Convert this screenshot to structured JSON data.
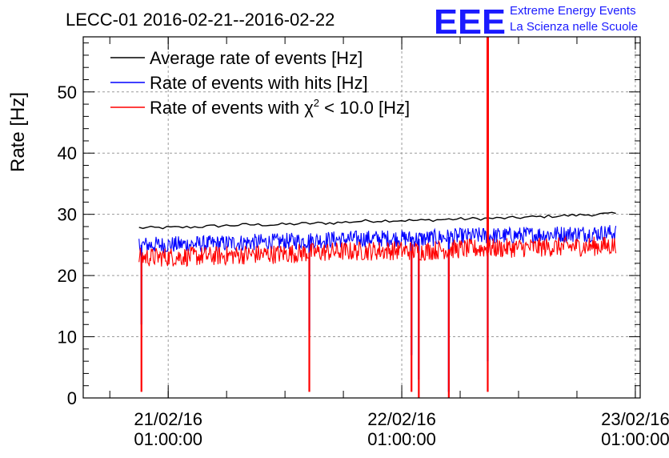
{
  "chart_data": {
    "type": "line",
    "title": "LECC-01 2016-02-21--2016-02-22",
    "ylabel": "Rate [Hz]",
    "xlabel": "",
    "xlim": [
      "2016-02-20T16:16:00",
      "2016-02-23T01:30:00"
    ],
    "ylim": [
      0,
      59
    ],
    "yticks": [
      0,
      10,
      20,
      30,
      40,
      50
    ],
    "xticks": [
      {
        "t": "2016-02-21T01:00:00",
        "label1": "21/02/16",
        "label2": "01:00:00"
      },
      {
        "t": "2016-02-22T01:00:00",
        "label1": "22/02/16",
        "label2": "01:00:00"
      },
      {
        "t": "2016-02-23T01:00:00",
        "label1": "23/02/16",
        "label2": "01:00:00"
      }
    ],
    "grid": true,
    "legend_position": "top-left",
    "legend": [
      {
        "label": "Average rate of events [Hz]",
        "color": "#000000"
      },
      {
        "label": "Rate of events with hits [Hz]",
        "color": "#0000ff"
      },
      {
        "label_pre": "Rate of events with ",
        "label_chi": "χ",
        "label_sup": "2",
        "label_post": " < 10.0 [Hz]",
        "color": "#ff0000"
      }
    ],
    "series": [
      {
        "color": "#000000",
        "x": [
          "2016-02-20T22:00:00",
          "2016-02-21T00:00:00",
          "2016-02-21T03:00:00",
          "2016-02-21T06:00:00",
          "2016-02-21T09:00:00",
          "2016-02-21T12:00:00",
          "2016-02-21T15:00:00",
          "2016-02-21T18:00:00",
          "2016-02-21T21:00:00",
          "2016-02-22T00:00:00",
          "2016-02-22T03:00:00",
          "2016-02-22T06:00:00",
          "2016-02-22T09:00:00",
          "2016-02-22T12:00:00",
          "2016-02-22T15:00:00",
          "2016-02-22T18:00:00",
          "2016-02-22T21:00:00",
          "2016-02-22T23:00:00"
        ],
        "values": [
          27.8,
          27.8,
          27.9,
          28.1,
          28.3,
          28.3,
          28.5,
          28.6,
          28.9,
          29.0,
          29.0,
          29.2,
          29.3,
          29.4,
          29.6,
          29.8,
          30.0,
          30.1
        ]
      },
      {
        "color": "#0000ff",
        "x": [
          "2016-02-20T22:00:00",
          "2016-02-21T00:00:00",
          "2016-02-21T03:00:00",
          "2016-02-21T06:00:00",
          "2016-02-21T09:00:00",
          "2016-02-21T12:00:00",
          "2016-02-21T15:00:00",
          "2016-02-21T18:00:00",
          "2016-02-21T21:00:00",
          "2016-02-22T00:00:00",
          "2016-02-22T03:00:00",
          "2016-02-22T06:00:00",
          "2016-02-22T09:00:00",
          "2016-02-22T12:00:00",
          "2016-02-22T15:00:00",
          "2016-02-22T18:00:00",
          "2016-02-22T21:00:00",
          "2016-02-22T23:00:00"
        ],
        "values": [
          25.0,
          25.0,
          25.1,
          25.2,
          25.4,
          25.5,
          25.7,
          25.9,
          26.0,
          26.1,
          26.0,
          26.3,
          26.5,
          26.5,
          26.7,
          26.8,
          26.9,
          27.0
        ],
        "dips": [
          {
            "t": "2016-02-20T22:15:00",
            "v": 12
          },
          {
            "t": "2016-02-21T15:30:00",
            "v": 11
          },
          {
            "t": "2016-02-22T02:00:00",
            "v": 7
          },
          {
            "t": "2016-02-22T02:45:00",
            "v": 3
          },
          {
            "t": "2016-02-22T05:50:00",
            "v": 1
          },
          {
            "t": "2016-02-22T09:50:00",
            "v": 6
          }
        ]
      },
      {
        "color": "#ff0000",
        "x": [
          "2016-02-20T22:00:00",
          "2016-02-21T00:00:00",
          "2016-02-21T03:00:00",
          "2016-02-21T06:00:00",
          "2016-02-21T09:00:00",
          "2016-02-21T12:00:00",
          "2016-02-21T15:00:00",
          "2016-02-21T18:00:00",
          "2016-02-21T21:00:00",
          "2016-02-22T00:00:00",
          "2016-02-22T03:00:00",
          "2016-02-22T06:00:00",
          "2016-02-22T09:00:00",
          "2016-02-22T12:00:00",
          "2016-02-22T15:00:00",
          "2016-02-22T18:00:00",
          "2016-02-22T21:00:00",
          "2016-02-22T23:00:00"
        ],
        "values": [
          23.0,
          23.0,
          23.1,
          23.2,
          23.4,
          23.5,
          23.7,
          23.9,
          24.0,
          24.1,
          24.0,
          24.3,
          24.4,
          24.5,
          24.6,
          24.7,
          24.8,
          24.9
        ],
        "dips": [
          {
            "t": "2016-02-20T22:15:00",
            "v": 1
          },
          {
            "t": "2016-02-21T15:30:00",
            "v": 1
          },
          {
            "t": "2016-02-22T02:00:00",
            "v": 1
          },
          {
            "t": "2016-02-22T02:45:00",
            "v": 0
          },
          {
            "t": "2016-02-22T05:50:00",
            "v": 0
          },
          {
            "t": "2016-02-22T09:50:00",
            "v": 1
          }
        ],
        "spike": {
          "t": "2016-02-22T09:50:00",
          "v": 59
        }
      }
    ]
  },
  "logo": {
    "mark": "EEE",
    "line1": "Extreme Energy Events",
    "line2": "La Scienza nelle Scuole"
  }
}
